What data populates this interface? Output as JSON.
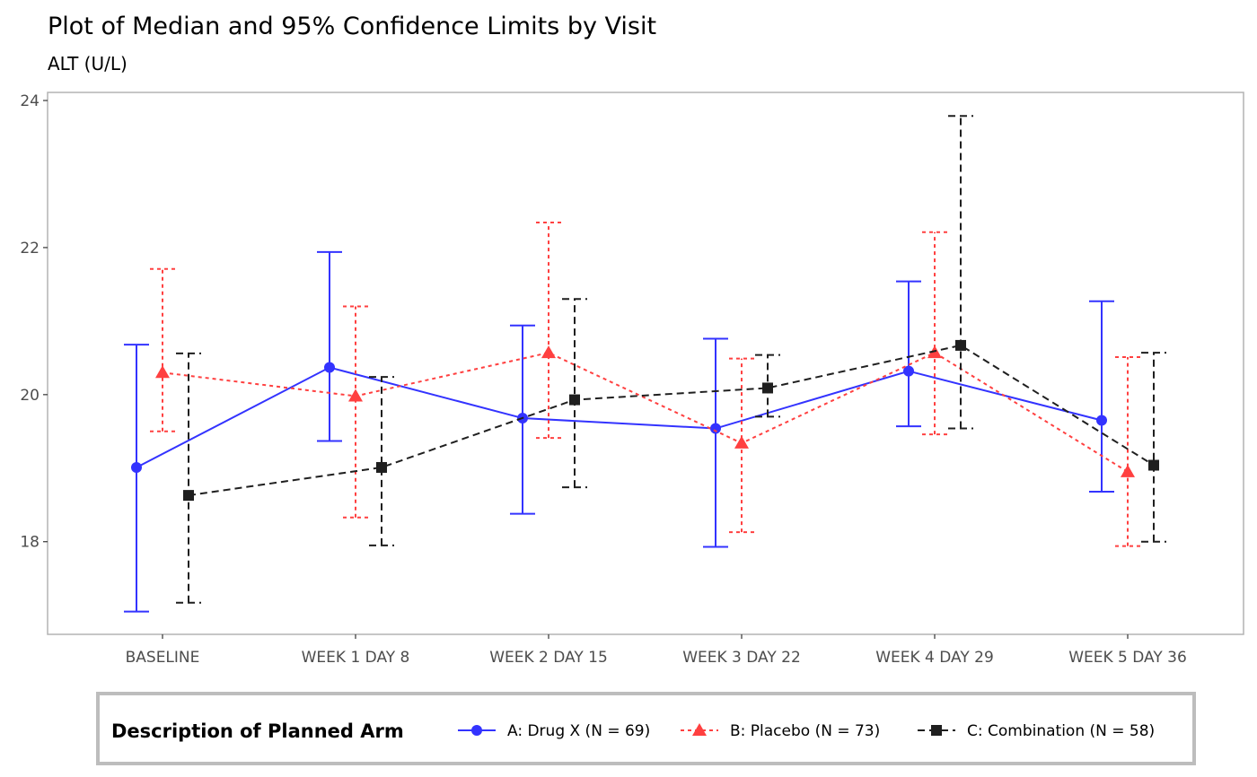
{
  "chart_data": {
    "type": "line",
    "title": "Plot of Median and 95% Confidence Limits by Visit",
    "subtitle": "ALT (U/L)",
    "xlabel": "",
    "ylabel": "",
    "ylim": [
      16.74,
      24.11
    ],
    "yticks": [
      18,
      20,
      22,
      24
    ],
    "grid": false,
    "categories": [
      "BASELINE",
      "WEEK 1 DAY 8",
      "WEEK 2 DAY 15",
      "WEEK 3 DAY 22",
      "WEEK 4 DAY 29",
      "WEEK 5 DAY 36"
    ],
    "legend": {
      "title": "Description of Planned Arm",
      "placement": "bottom"
    },
    "series": [
      {
        "name": "A: Drug X (N = 69)",
        "color": "#3333ff",
        "marker": "circle",
        "dash": "",
        "median": [
          19.01,
          20.37,
          19.68,
          19.54,
          20.32,
          19.65
        ],
        "lower": [
          17.05,
          19.37,
          18.38,
          17.93,
          19.57,
          18.68
        ],
        "upper": [
          20.68,
          21.94,
          20.94,
          20.76,
          21.54,
          21.27
        ]
      },
      {
        "name": "B: Placebo (N = 73)",
        "color": "#ff4040",
        "marker": "triangle",
        "dash": "4,4",
        "median": [
          20.3,
          19.98,
          20.57,
          19.34,
          20.57,
          18.95
        ],
        "lower": [
          19.5,
          18.33,
          19.41,
          18.13,
          19.46,
          17.94
        ],
        "upper": [
          21.71,
          21.2,
          22.34,
          20.49,
          22.21,
          20.51
        ]
      },
      {
        "name": "C: Combination (N = 58)",
        "color": "#1f1f1f",
        "marker": "square",
        "dash": "8,5",
        "median": [
          18.63,
          19.01,
          19.93,
          20.09,
          20.67,
          19.04
        ],
        "lower": [
          17.17,
          17.95,
          18.74,
          19.7,
          19.54,
          18.0
        ],
        "upper": [
          20.56,
          20.24,
          21.3,
          20.54,
          23.79,
          20.57
        ]
      }
    ]
  }
}
